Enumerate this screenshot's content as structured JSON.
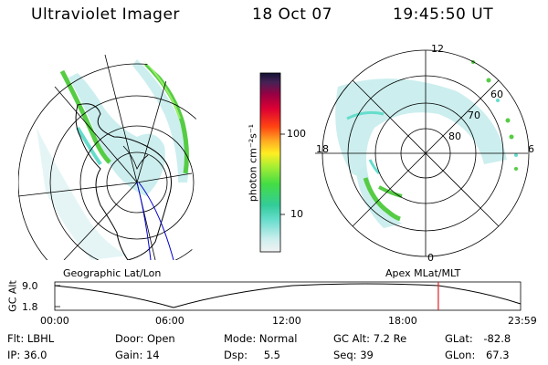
{
  "header": {
    "instrument": "Ultraviolet Imager",
    "date": "18 Oct 07",
    "time": "19:45:50 UT"
  },
  "colorbar": {
    "label": "photon cm⁻²s⁻¹",
    "ticks": [
      "100",
      "10"
    ]
  },
  "geo_panel": {
    "caption": "Geographic Lat/Lon"
  },
  "apex_panel": {
    "caption": "Apex MLat/MLT",
    "mlt_labels": [
      "12",
      "18",
      "6",
      "0"
    ],
    "lat_labels": [
      "60",
      "70",
      "80"
    ]
  },
  "altitude_plot": {
    "ylabel": "GC Alt",
    "yticks": [
      "9.0",
      "1.8"
    ],
    "xticks": [
      "00:00",
      "06:00",
      "12:00",
      "18:00",
      "23:59"
    ],
    "current_marker_hour": 19.76
  },
  "info": {
    "filter": {
      "label": "Flt:",
      "value": "LBHL"
    },
    "ip": {
      "label": "IP:",
      "value": "36.0"
    },
    "door": {
      "label": "Door:",
      "value": "Open"
    },
    "gain": {
      "label": "Gain:",
      "value": "14"
    },
    "mode": {
      "label": "Mode:",
      "value": "Normal"
    },
    "dsp": {
      "label": "Dsp:",
      "value": "5.5"
    },
    "gc_alt": {
      "label": "GC Alt:",
      "value": "7.2 Re"
    },
    "seq": {
      "label": "Seq:",
      "value": "39"
    },
    "glat": {
      "label": "GLat:",
      "value": "-82.8"
    },
    "glon": {
      "label": "GLon:",
      "value": "67.3"
    }
  },
  "colors": {
    "green": "#55cc44",
    "cyan": "#66ddcc",
    "light_cyan": "#c7ecec",
    "marker": "#e02020",
    "track": "#0000cc"
  }
}
